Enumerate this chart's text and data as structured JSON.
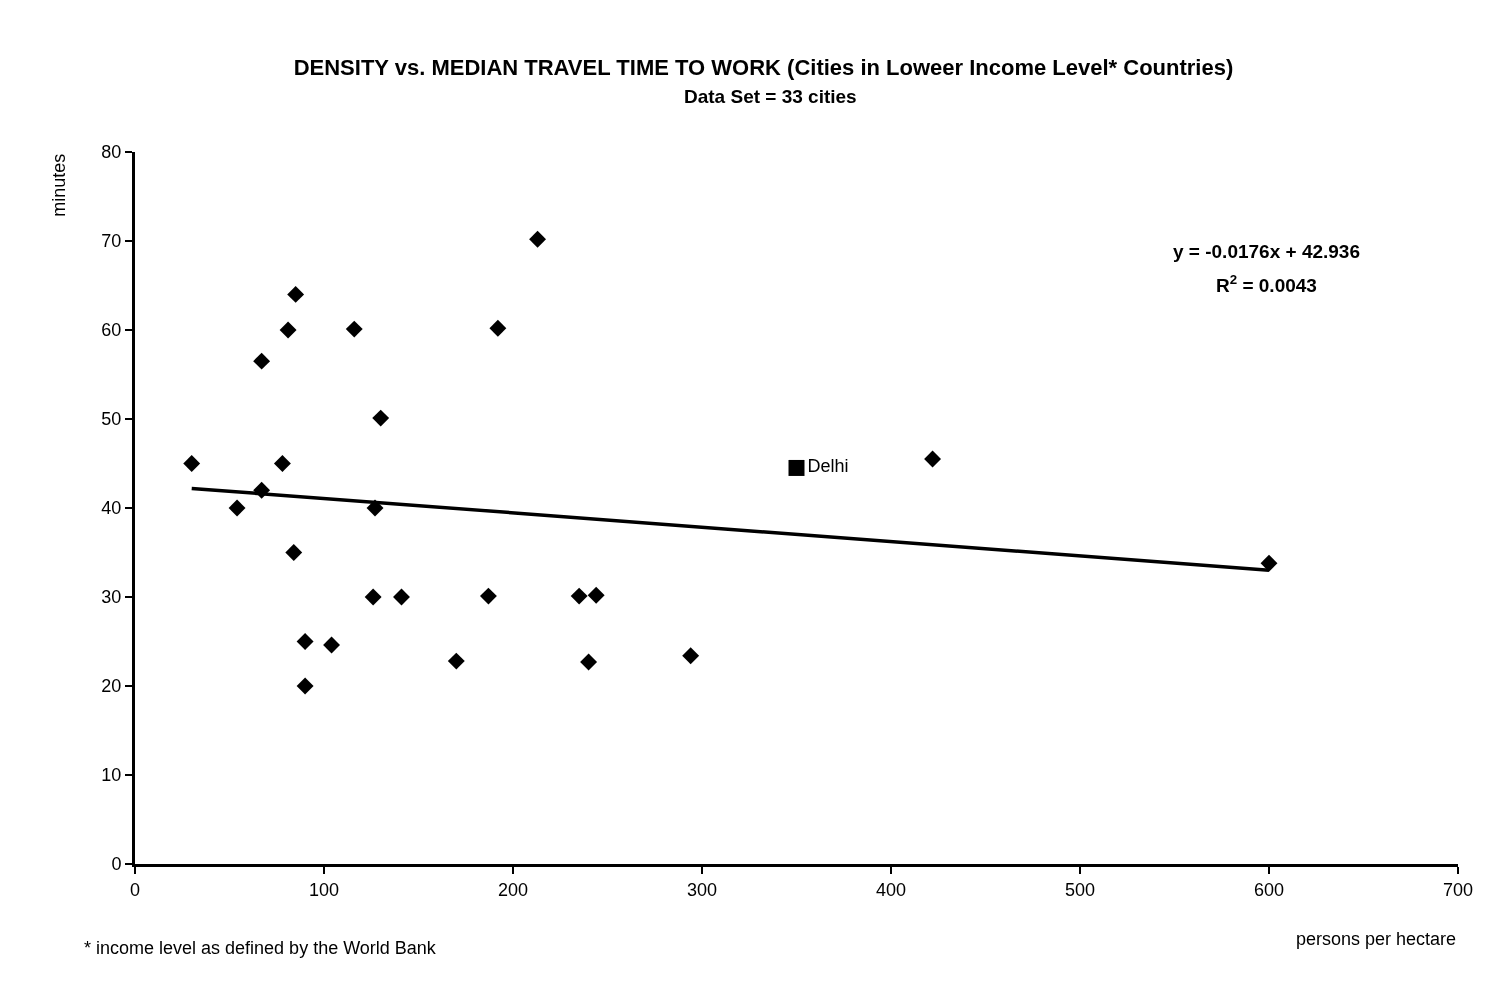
{
  "chart_data": {
    "type": "scatter",
    "title": "DENSITY vs. MEDIAN TRAVEL TIME TO WORK (Cities in Loweer Income Level* Countries)",
    "subtitle": "Data Set = 33 cities",
    "xlabel": "persons per hectare",
    "ylabel": "minutes",
    "xlim": [
      0,
      700
    ],
    "xticks": [
      0,
      100,
      200,
      300,
      400,
      500,
      600,
      700
    ],
    "ylim": [
      0,
      80
    ],
    "yticks": [
      0,
      10,
      20,
      30,
      40,
      50,
      60,
      70,
      80
    ],
    "grid": false,
    "marker": "diamond",
    "series": [
      {
        "color": "#000000",
        "x": [
          30,
          54,
          67,
          67,
          78,
          81,
          85,
          84,
          90,
          90,
          104,
          116,
          130,
          127,
          126,
          141,
          170,
          187,
          192,
          213,
          235,
          244,
          240,
          294,
          422,
          600
        ],
        "values": [
          45,
          40,
          56.5,
          42,
          45,
          60,
          64,
          35,
          25,
          20,
          24.6,
          60.1,
          50.1,
          40,
          30,
          30,
          22.8,
          30.1,
          60.2,
          70.2,
          30.1,
          30.2,
          22.7,
          23.4,
          45.5,
          33.8
        ]
      },
      {
        "name": "Delhi",
        "marker": "square",
        "color": "#000000",
        "x": [
          350
        ],
        "values": [
          44.5
        ]
      },
      {
        "type": "line",
        "color": "#000000",
        "marker": "none",
        "x": [
          30,
          600
        ],
        "values": [
          42.2,
          33
        ]
      }
    ],
    "annotations": [
      "y = -0.0176x + 42.936",
      "R$^{2}$ = 0.0043",
      "* income level as defined by the World Bank"
    ]
  }
}
